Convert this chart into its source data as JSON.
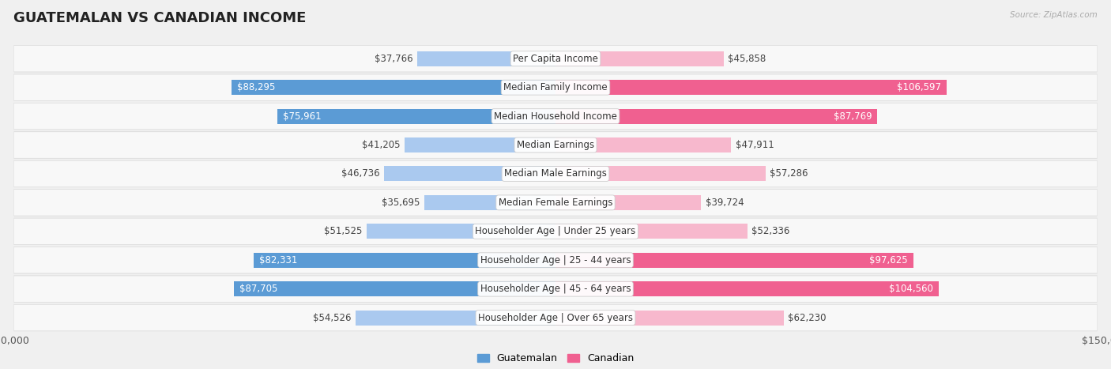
{
  "title": "GUATEMALAN VS CANADIAN INCOME",
  "source": "Source: ZipAtlas.com",
  "categories": [
    "Per Capita Income",
    "Median Family Income",
    "Median Household Income",
    "Median Earnings",
    "Median Male Earnings",
    "Median Female Earnings",
    "Householder Age | Under 25 years",
    "Householder Age | 25 - 44 years",
    "Householder Age | 45 - 64 years",
    "Householder Age | Over 65 years"
  ],
  "guatemalan_values": [
    37766,
    88295,
    75961,
    41205,
    46736,
    35695,
    51525,
    82331,
    87705,
    54526
  ],
  "canadian_values": [
    45858,
    106597,
    87769,
    47911,
    57286,
    39724,
    52336,
    97625,
    104560,
    62230
  ],
  "guat_color_light": "#aac9ef",
  "guat_color_dark": "#5b9bd5",
  "can_color_light": "#f7b8cd",
  "can_color_dark": "#f06090",
  "guat_threshold": 60000,
  "can_threshold": 70000,
  "bar_height": 0.52,
  "max_value": 150000,
  "bg_color": "#f0f0f0",
  "row_bg": "#f7f7f7",
  "row_shadow": "#e0e0e0",
  "title_fontsize": 13,
  "label_fontsize": 8.5,
  "value_fontsize": 8.5,
  "axis_label_fontsize": 9
}
